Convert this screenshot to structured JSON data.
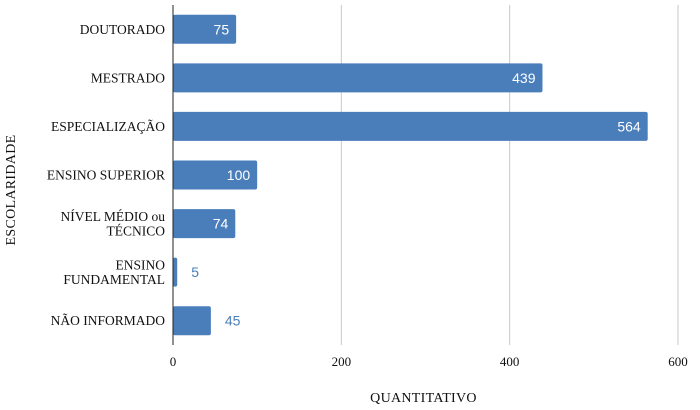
{
  "chart_data": {
    "type": "bar",
    "orientation": "horizontal",
    "categories": [
      [
        "DOUTORADO"
      ],
      [
        "MESTRADO"
      ],
      [
        "ESPECIALIZAÇÃO"
      ],
      [
        "ENSINO SUPERIOR"
      ],
      [
        "NÍVEL MÉDIO ou",
        "TÉCNICO"
      ],
      [
        "ENSINO",
        "FUNDAMENTAL"
      ],
      [
        "NÃO INFORMADO"
      ]
    ],
    "values": [
      75,
      439,
      564,
      100,
      74,
      5,
      45
    ],
    "xlabel": "QUANTITATIVO",
    "ylabel": "ESCOLARIDADE",
    "xlim": [
      0,
      600
    ],
    "xticks": [
      0,
      200,
      400,
      600
    ],
    "grid": "vertical",
    "legend": "none",
    "colors": {
      "bar": "#4a7ebb",
      "label_inside": "#ffffff",
      "label_outside": "#4a7ebb"
    }
  }
}
